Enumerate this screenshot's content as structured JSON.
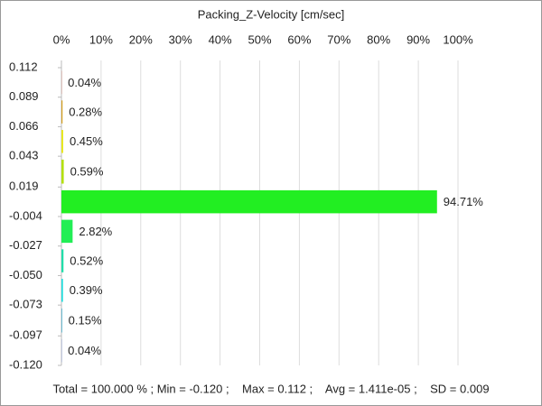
{
  "chart_data": {
    "type": "histogram",
    "orientation": "horizontal",
    "title": "Packing_Z-Velocity [cm/sec]",
    "bins": [
      0.112,
      0.089,
      0.066,
      0.043,
      0.019,
      -0.004,
      -0.027,
      -0.05,
      -0.073,
      -0.097,
      -0.12
    ],
    "values": [
      0.04,
      0.28,
      0.45,
      0.59,
      94.71,
      2.82,
      0.52,
      0.39,
      0.15,
      0.04
    ],
    "value_labels": [
      "0.04%",
      "0.28%",
      "0.45%",
      "0.59%",
      "94.71%",
      "2.82%",
      "0.52%",
      "0.39%",
      "0.15%",
      "0.04%"
    ],
    "colors": [
      "#d03010",
      "#d4a020",
      "#e8e820",
      "#b4e010",
      "#22ee22",
      "#22ee55",
      "#22ddaa",
      "#22dddd",
      "#2299bb",
      "#2255cc"
    ],
    "xlim": [
      0,
      100
    ],
    "xticks": [
      {
        "value": 0,
        "label": "0%"
      },
      {
        "value": 10,
        "label": "10%"
      },
      {
        "value": 20,
        "label": "20%"
      },
      {
        "value": 30,
        "label": "30%"
      },
      {
        "value": 40,
        "label": "40%"
      },
      {
        "value": 50,
        "label": "50%"
      },
      {
        "value": 60,
        "label": "60%"
      },
      {
        "value": 70,
        "label": "70%"
      },
      {
        "value": 80,
        "label": "80%"
      },
      {
        "value": 90,
        "label": "90%"
      },
      {
        "value": 100,
        "label": "100%"
      }
    ],
    "ylim": [
      -0.12,
      0.112
    ],
    "yticks": [
      0.112,
      0.089,
      0.066,
      0.043,
      0.019,
      -0.004,
      -0.027,
      {
        "value": -0.05,
        "label": "-0.050"
      },
      -0.073,
      -0.097,
      {
        "value": -0.12,
        "label": "-0.120"
      }
    ],
    "grid": true,
    "footer": "Total = 100.000 % ; Min = -0.120 ;    Max = 0.112 ;    Avg = 1.411e-05 ;    SD = 0.009"
  }
}
